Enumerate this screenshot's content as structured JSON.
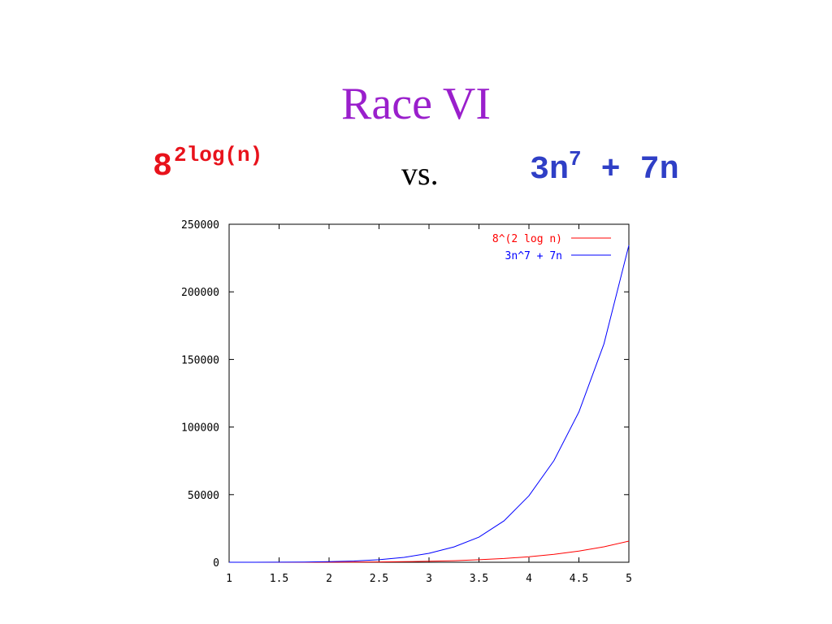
{
  "slide": {
    "title": "Race VI",
    "left_expr": {
      "base": "8",
      "sup": "2log(n)",
      "color": "#e8121b"
    },
    "vs": "vs.",
    "right_expr": {
      "base": "3n",
      "sup": "7",
      "tail": " + 7n",
      "color": "#2f3fc6"
    }
  },
  "chart_data": {
    "type": "line",
    "xlim": [
      1,
      5
    ],
    "ylim": [
      0,
      250000
    ],
    "x_ticks": [
      "1",
      "1.5",
      "2",
      "2.5",
      "3",
      "3.5",
      "4",
      "4.5",
      "5"
    ],
    "y_ticks": [
      "0",
      "50000",
      "100000",
      "150000",
      "200000",
      "250000"
    ],
    "x_tick_values": [
      1,
      1.5,
      2,
      2.5,
      3,
      3.5,
      4,
      4.5,
      5
    ],
    "y_tick_values": [
      0,
      50000,
      100000,
      150000,
      200000,
      250000
    ],
    "grid": false,
    "legend_position": "top-right",
    "x": [
      1,
      1.25,
      1.5,
      1.75,
      2,
      2.25,
      2.5,
      2.75,
      3,
      3.25,
      3.5,
      3.75,
      4,
      4.25,
      4.5,
      4.75,
      5
    ],
    "series": [
      {
        "name": "8^(2 log n)",
        "color": "#ff0000",
        "values": [
          1,
          4,
          11,
          25,
          64,
          133,
          244,
          416,
          729,
          1143,
          1838,
          2790,
          4096,
          5826,
          8304,
          11440,
          15625
        ]
      },
      {
        "name": "3n^7 + 7n",
        "color": "#0000ff",
        "values": [
          10,
          23,
          61,
          152,
          398,
          889,
          1849,
          3634,
          6582,
          11330,
          18555,
          30570,
          49180,
          75200,
          111200,
          161500,
          234410
        ]
      }
    ]
  }
}
